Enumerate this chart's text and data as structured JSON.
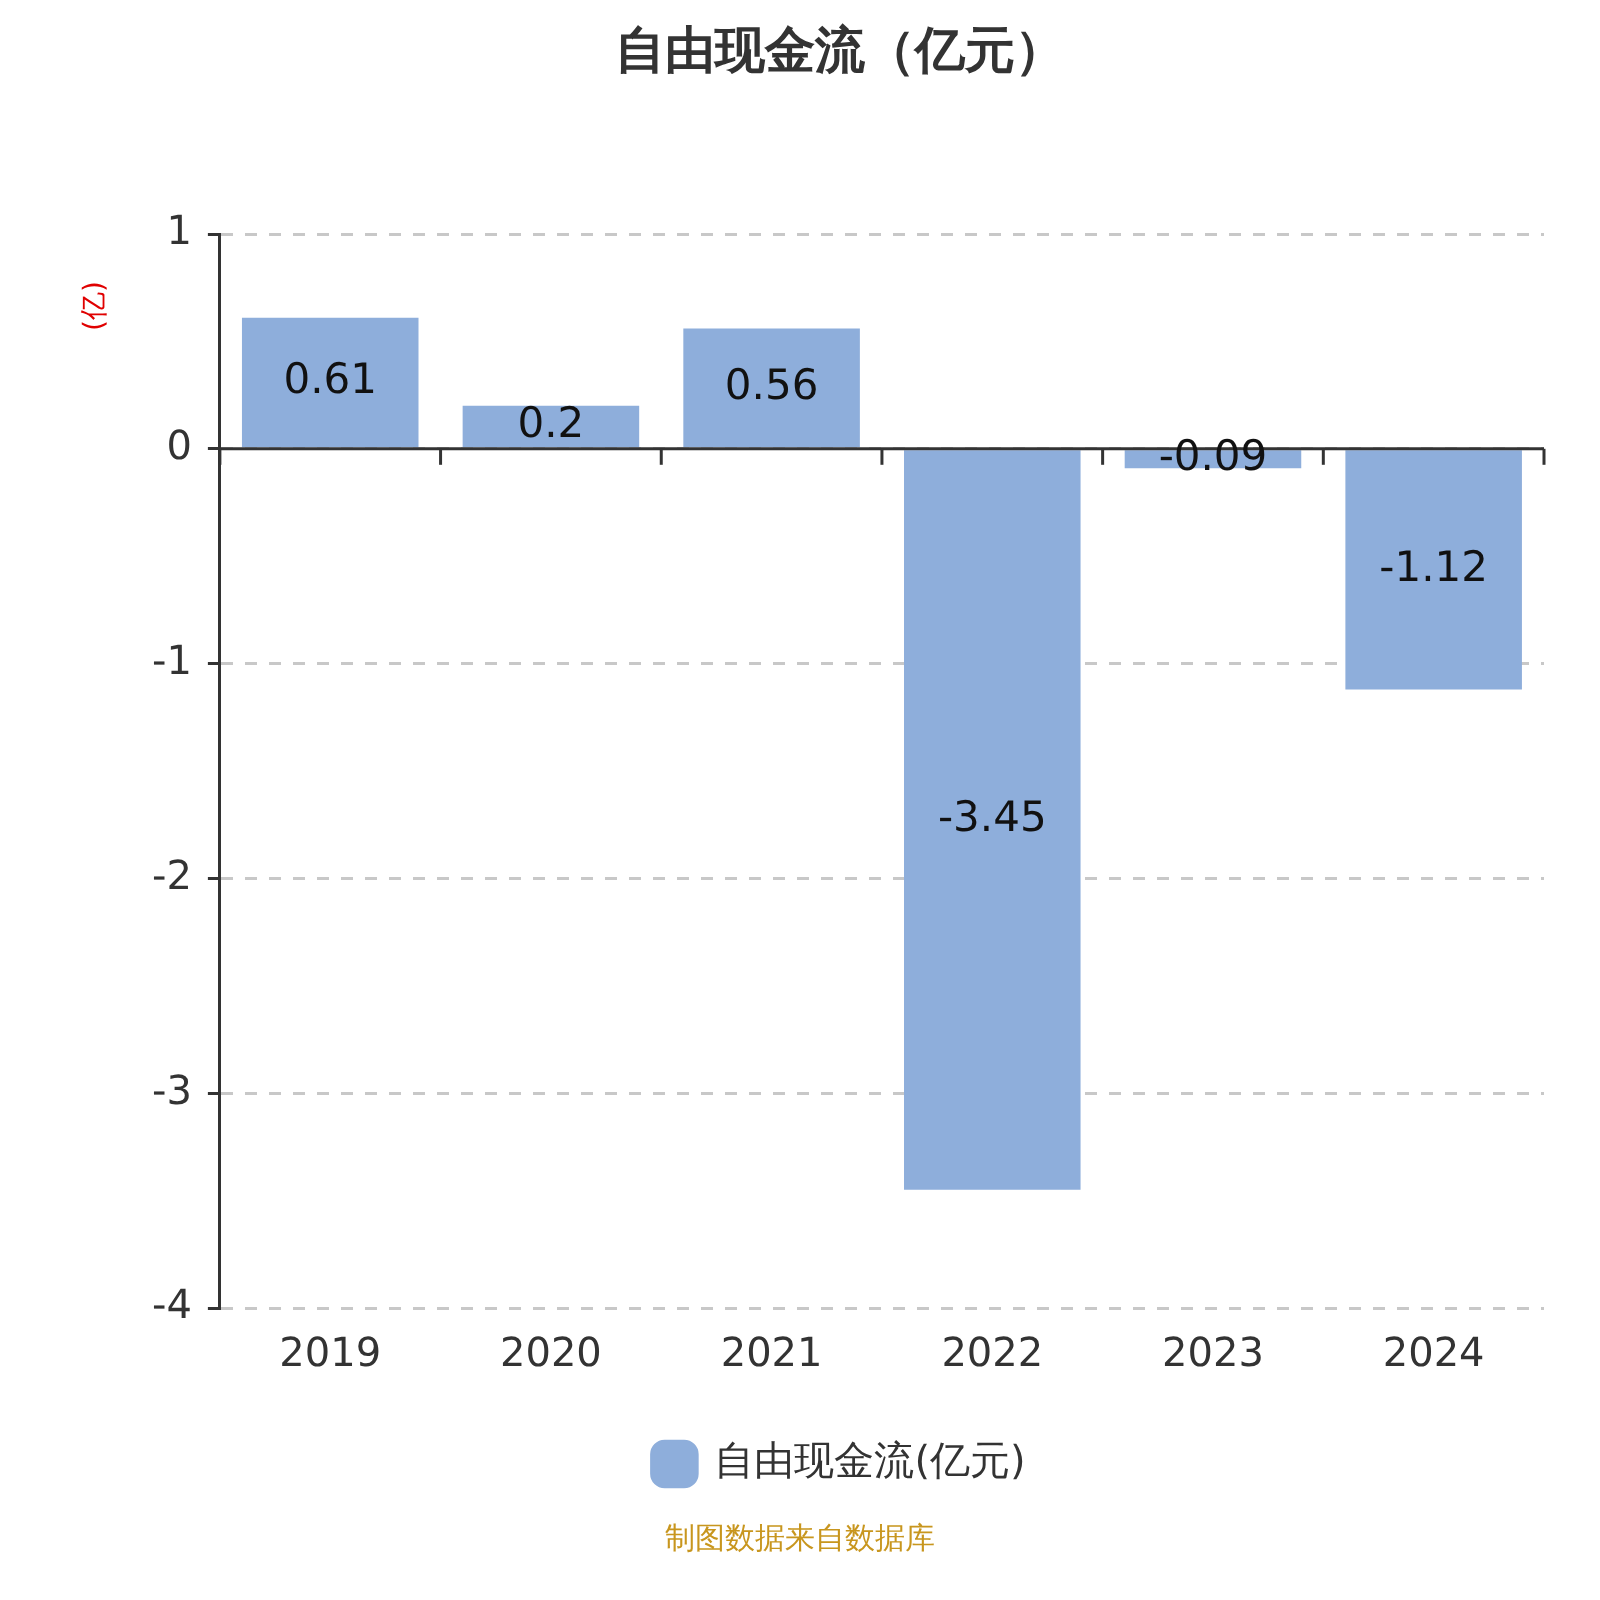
{
  "chart_data": {
    "type": "bar",
    "title": "自由现金流（亿元）",
    "ylabel": "(亿)",
    "categories": [
      "2019",
      "2020",
      "2021",
      "2022",
      "2023",
      "2024"
    ],
    "series": [
      {
        "name": "自由现金流(亿元)",
        "color": "#8eaedb",
        "values": [
          0.61,
          0.2,
          0.56,
          -3.45,
          -0.09,
          -1.12
        ]
      }
    ],
    "ylim": [
      -4,
      1
    ],
    "yticks": [
      -4,
      -3,
      -2,
      -1,
      0,
      1
    ],
    "grid": "y",
    "legend": "bottom",
    "data_labels": true,
    "annotations": [
      "制图数据来自数据库"
    ]
  }
}
